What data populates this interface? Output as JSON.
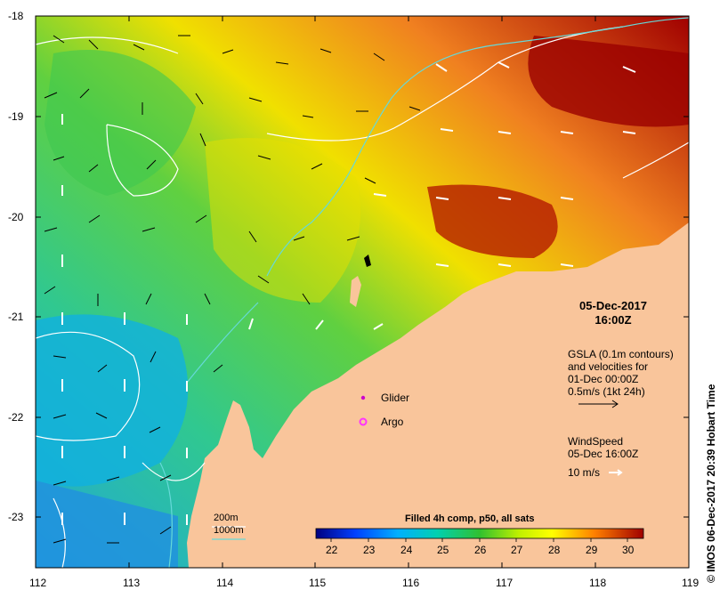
{
  "map": {
    "lon_ticks": [
      "112",
      "113",
      "114",
      "115",
      "116",
      "117",
      "118",
      "119"
    ],
    "lat_ticks": [
      "-18",
      "-19",
      "-20",
      "-21",
      "-22",
      "-23"
    ],
    "date_line1": "05-Dec-2017",
    "date_line2": "16:00Z",
    "gsla_lines": [
      "GSLA (0.1m contours)",
      "and velocities for",
      "01-Dec 00:00Z",
      "0.5m/s (1kt 24h)"
    ],
    "wind_lines": [
      "WindSpeed",
      "05-Dec 16:00Z"
    ],
    "wind_scale": "10 m/s",
    "glider_label": "Glider",
    "argo_label": "Argo",
    "depth_200": "200m",
    "depth_1000": "1000m",
    "colorbar_title": "Filled 4h comp, p50, all sats",
    "colorbar_ticks": [
      "22",
      "23",
      "24",
      "25",
      "26",
      "27",
      "28",
      "29",
      "30"
    ],
    "credit": "© IMOS 06-Dec-2017 20:39 Hobart Time",
    "colors": {
      "land": "#f9c59b",
      "contour_200": "#ffffff",
      "contour_1000": "#66d9d9",
      "glider": "#cc00cc",
      "argo": "#ff33ff"
    }
  }
}
